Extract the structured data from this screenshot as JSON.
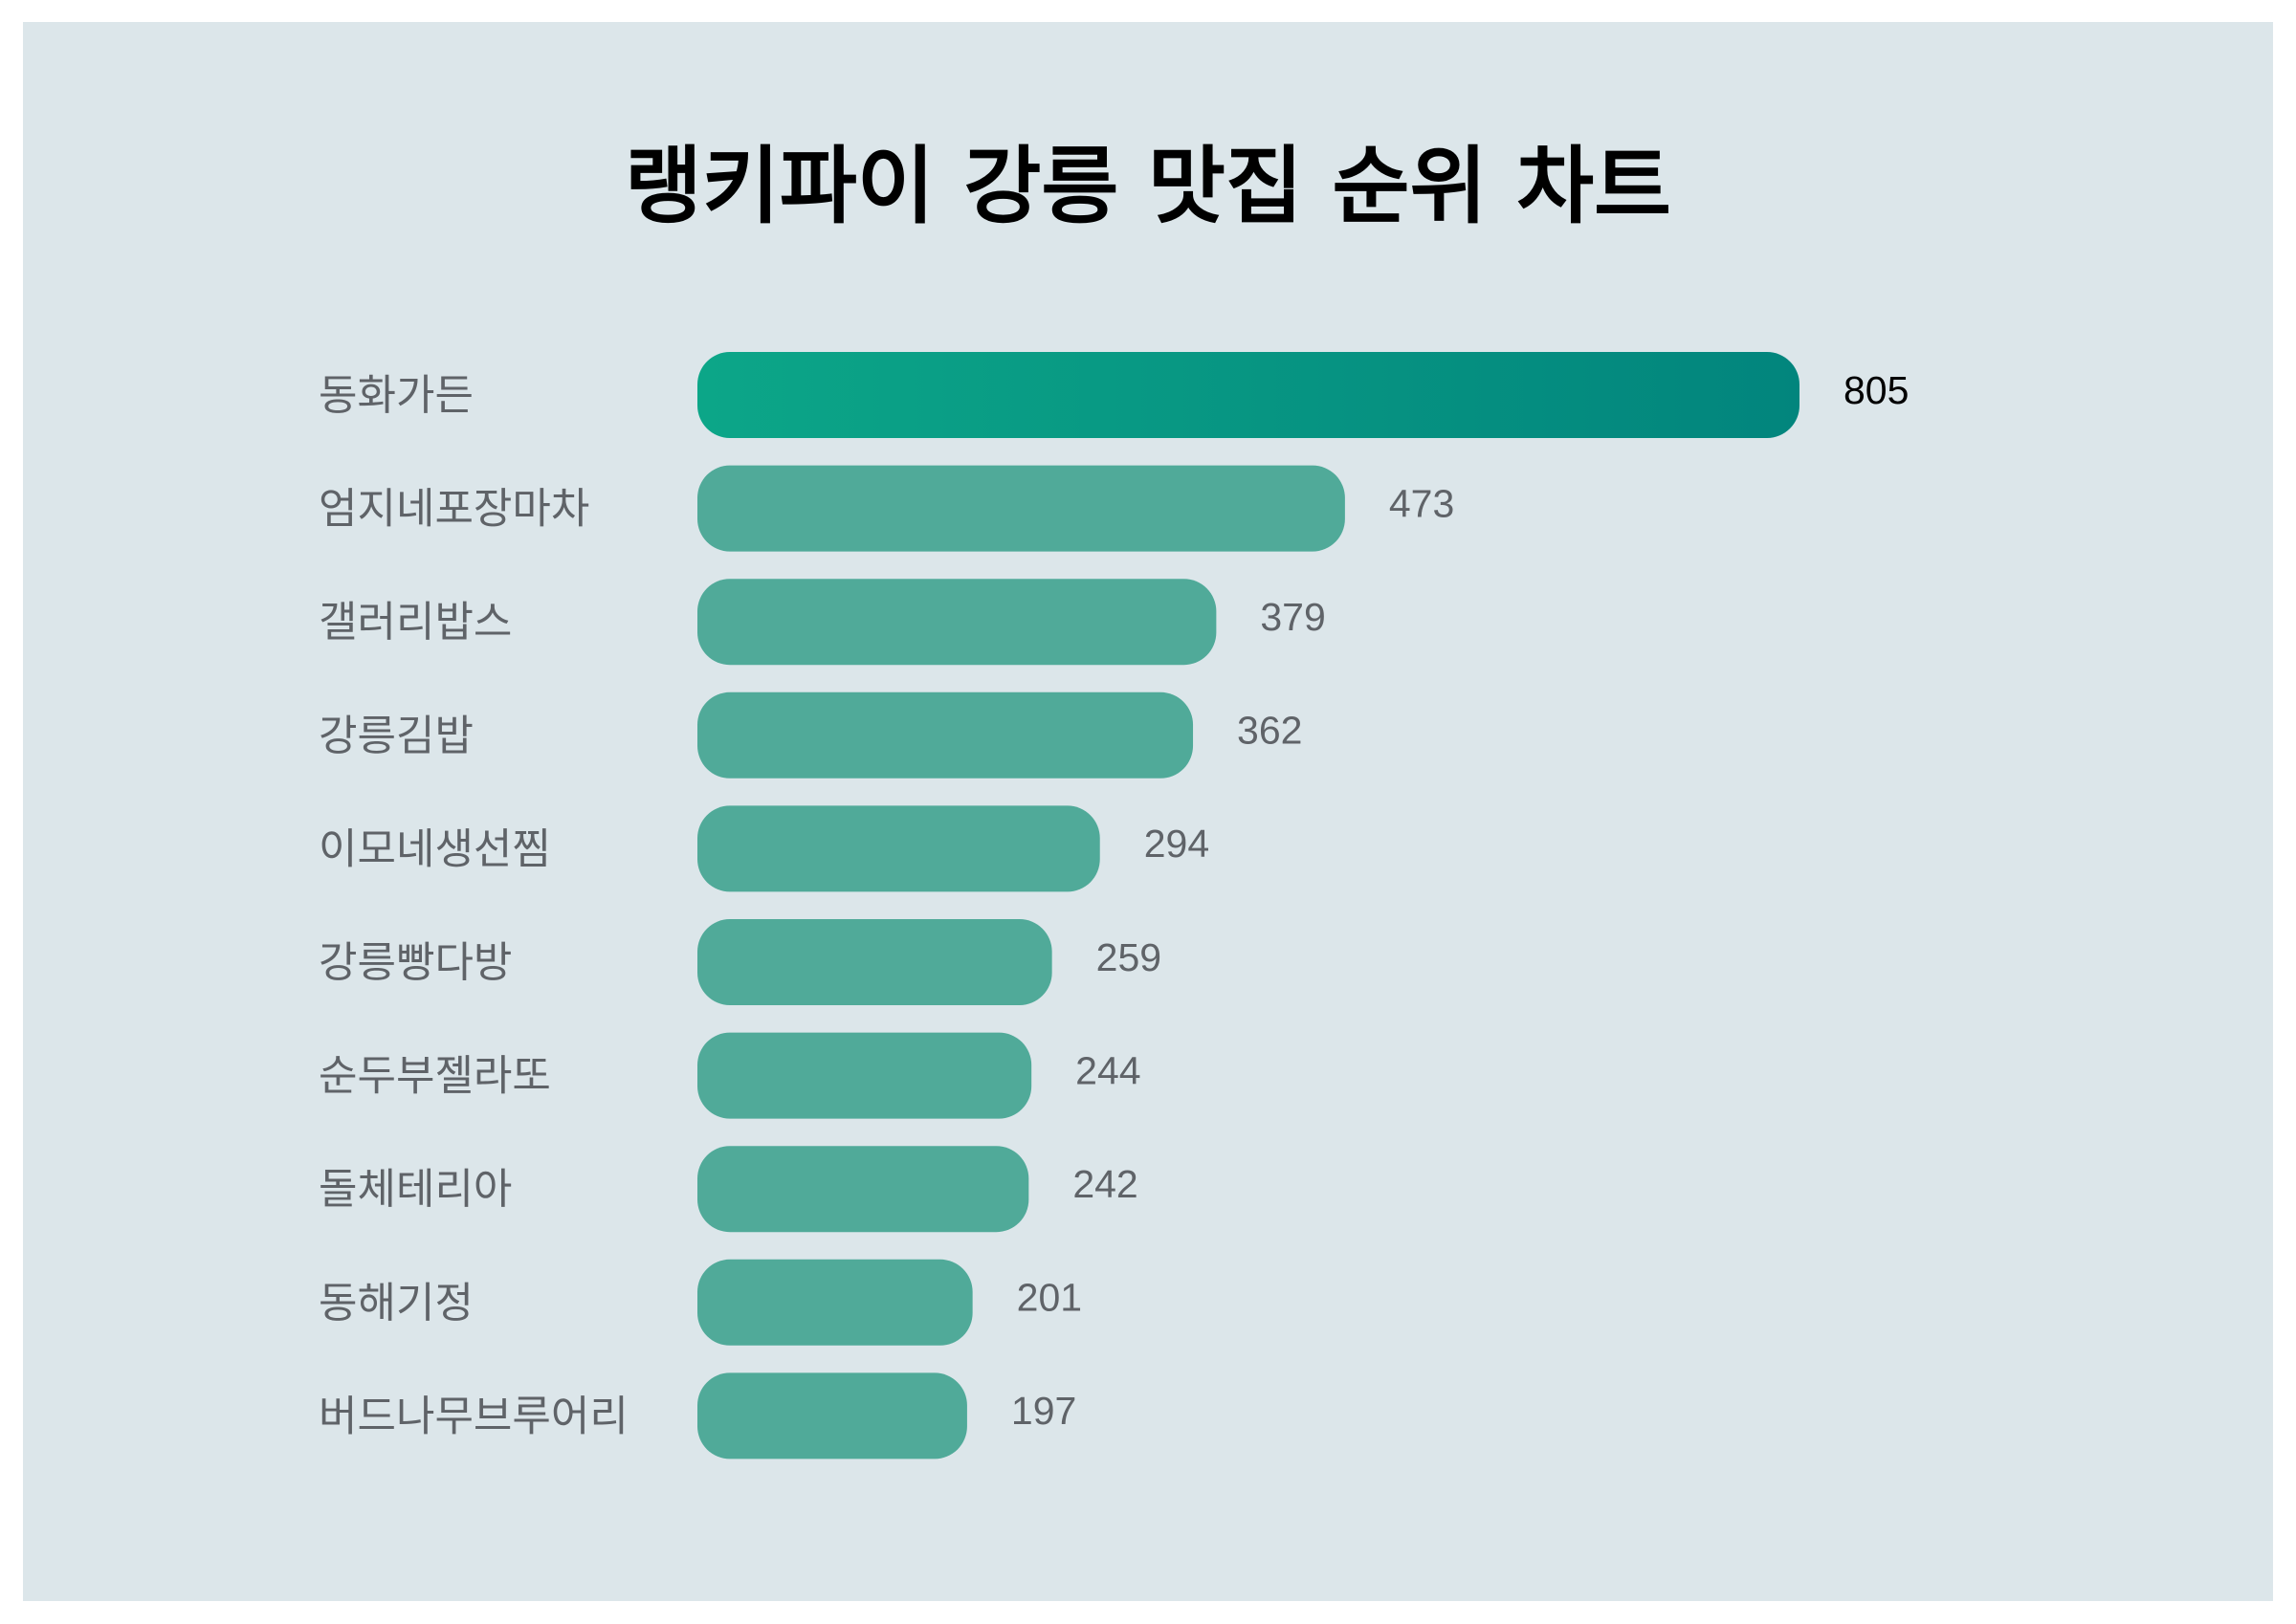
{
  "chart_data": {
    "type": "bar",
    "orientation": "horizontal",
    "title": "랭키파이 강릉 맛집 순위 차트",
    "categories": [
      "동화가든",
      "엄지네포장마차",
      "갤러리밥스",
      "강릉김밥",
      "이모네생선찜",
      "강릉빵다방",
      "순두부젤라또",
      "돌체테리아",
      "동해기정",
      "버드나무브루어리"
    ],
    "values": [
      805,
      473,
      379,
      362,
      294,
      259,
      244,
      242,
      201,
      197
    ],
    "xlim": [
      0,
      805
    ],
    "grid": false,
    "legend": "none",
    "colors": {
      "background": "#dce6ea",
      "bar": "#50aa99",
      "top_bar_start": "#0ca688",
      "top_bar_end": "#02857d"
    }
  }
}
